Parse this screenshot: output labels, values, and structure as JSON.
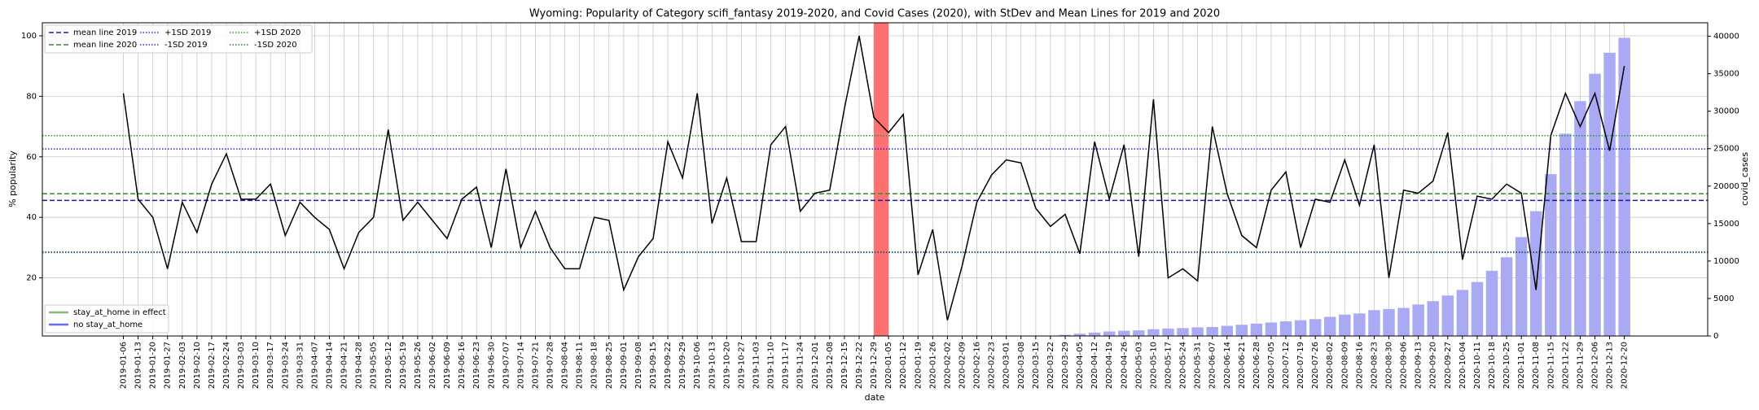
{
  "chart_data": {
    "type": "line_bar",
    "title": "Wyoming: Popularity of Category scifi_fantasy 2019-2020, and Covid Cases (2020), with StDev and Mean Lines for 2019 and 2020",
    "xlabel": "date",
    "ylabel": "% popularity",
    "y2label": "covid_cases",
    "categories": [
      "2019-01-06",
      "2019-01-13",
      "2019-01-20",
      "2019-01-27",
      "2019-02-03",
      "2019-02-10",
      "2019-02-17",
      "2019-02-24",
      "2019-03-03",
      "2019-03-10",
      "2019-03-17",
      "2019-03-24",
      "2019-03-31",
      "2019-04-07",
      "2019-04-14",
      "2019-04-21",
      "2019-04-28",
      "2019-05-05",
      "2019-05-12",
      "2019-05-19",
      "2019-05-26",
      "2019-06-02",
      "2019-06-09",
      "2019-06-16",
      "2019-06-23",
      "2019-06-30",
      "2019-07-07",
      "2019-07-14",
      "2019-07-21",
      "2019-07-28",
      "2019-08-04",
      "2019-08-11",
      "2019-08-18",
      "2019-08-25",
      "2019-09-01",
      "2019-09-08",
      "2019-09-15",
      "2019-09-22",
      "2019-09-29",
      "2019-10-06",
      "2019-10-13",
      "2019-10-20",
      "2019-10-27",
      "2019-11-03",
      "2019-11-10",
      "2019-11-17",
      "2019-11-24",
      "2019-12-01",
      "2019-12-08",
      "2019-12-15",
      "2019-12-22",
      "2019-12-29",
      "2020-01-05",
      "2020-01-12",
      "2020-01-19",
      "2020-01-26",
      "2020-02-02",
      "2020-02-09",
      "2020-02-16",
      "2020-02-23",
      "2020-03-01",
      "2020-03-08",
      "2020-03-15",
      "2020-03-22",
      "2020-03-29",
      "2020-04-05",
      "2020-04-12",
      "2020-04-19",
      "2020-04-26",
      "2020-05-03",
      "2020-05-10",
      "2020-05-17",
      "2020-05-24",
      "2020-05-31",
      "2020-06-07",
      "2020-06-14",
      "2020-06-21",
      "2020-06-28",
      "2020-07-05",
      "2020-07-12",
      "2020-07-19",
      "2020-07-26",
      "2020-08-02",
      "2020-08-09",
      "2020-08-16",
      "2020-08-23",
      "2020-08-30",
      "2020-09-06",
      "2020-09-13",
      "2020-09-20",
      "2020-09-27",
      "2020-10-04",
      "2020-10-11",
      "2020-10-18",
      "2020-10-25",
      "2020-11-01",
      "2020-11-08",
      "2020-11-15",
      "2020-11-22",
      "2020-11-29",
      "2020-12-06",
      "2020-12-13",
      "2020-12-20"
    ],
    "series": [
      {
        "type": "line",
        "color": "#000000",
        "values": [
          81,
          46,
          40,
          23,
          45,
          35,
          51,
          61,
          46,
          46,
          51,
          34,
          45,
          40,
          36,
          23,
          35,
          40,
          69,
          39,
          45,
          39,
          33,
          46,
          50,
          30,
          56,
          30,
          42,
          30,
          23,
          23,
          40,
          39,
          16,
          27,
          33,
          65,
          53,
          81,
          38,
          53,
          32,
          32,
          64,
          70,
          42,
          48,
          49,
          76,
          100,
          73,
          68,
          74,
          21,
          36,
          6,
          24,
          45,
          54,
          59,
          58,
          43,
          37,
          41,
          28,
          65,
          46,
          64,
          27,
          79,
          20,
          23,
          19,
          70,
          48,
          34,
          30,
          49,
          55,
          30,
          46,
          45,
          59,
          44,
          64,
          20,
          49,
          48,
          52,
          68,
          26,
          47,
          46,
          51,
          48,
          16,
          67,
          81,
          70,
          81,
          62,
          90
        ]
      },
      {
        "type": "bar",
        "axis": "y2",
        "color": "#aaaaf4",
        "values": [
          null,
          null,
          null,
          null,
          null,
          null,
          null,
          null,
          null,
          null,
          null,
          null,
          null,
          null,
          null,
          null,
          null,
          null,
          null,
          null,
          null,
          null,
          null,
          null,
          null,
          null,
          null,
          null,
          null,
          null,
          null,
          null,
          null,
          null,
          null,
          null,
          null,
          null,
          null,
          null,
          null,
          null,
          null,
          null,
          null,
          null,
          null,
          null,
          null,
          null,
          null,
          null,
          null,
          null,
          null,
          null,
          null,
          null,
          null,
          null,
          null,
          null,
          null,
          null,
          150,
          300,
          450,
          600,
          700,
          750,
          900,
          1000,
          1050,
          1150,
          1200,
          1350,
          1500,
          1650,
          1800,
          1950,
          2100,
          2250,
          2550,
          2850,
          3000,
          3450,
          3600,
          3750,
          4200,
          4650,
          5400,
          6150,
          7200,
          8700,
          10500,
          13200,
          16650,
          21600,
          27000,
          31350,
          35000,
          37800,
          39800
        ]
      }
    ],
    "reference_lines": [
      {
        "name": "mean line 2019",
        "value": 45.6,
        "color": "#1a1aa6",
        "style": "dashed"
      },
      {
        "name": "mean line 2020",
        "value": 47.8,
        "color": "#2e8b2e",
        "style": "dashed"
      },
      {
        "name": "+1SD 2019",
        "value": 62.6,
        "color": "#2a2ae0",
        "style": "dotted"
      },
      {
        "name": "-1SD 2019",
        "value": 28.4,
        "color": "#2a2ae0",
        "style": "dotted"
      },
      {
        "name": "+1SD 2020",
        "value": 67.0,
        "color": "#2e9a2e",
        "style": "dotted"
      },
      {
        "name": "-1SD 2020",
        "value": 28.6,
        "color": "#2e7a2e",
        "style": "dotted"
      }
    ],
    "legend": "upper left",
    "legend2": {
      "corner": "lower left",
      "entries": [
        {
          "name": "stay_at_home in effect",
          "color": "#7fbf7f"
        },
        {
          "name": "no stay_at_home",
          "color": "#6a6aee"
        }
      ]
    },
    "highlight": {
      "span": [
        "2019-12-29",
        "2020-01-05"
      ],
      "color": "#ff7070"
    },
    "ylim": [
      0.8,
      104.3
    ],
    "yticks": [
      20,
      40,
      60,
      80,
      100
    ],
    "y2lim": [
      0,
      41800
    ],
    "y2ticks": [
      0,
      5000,
      10000,
      15000,
      20000,
      25000,
      30000,
      35000,
      40000
    ],
    "grid": true
  }
}
